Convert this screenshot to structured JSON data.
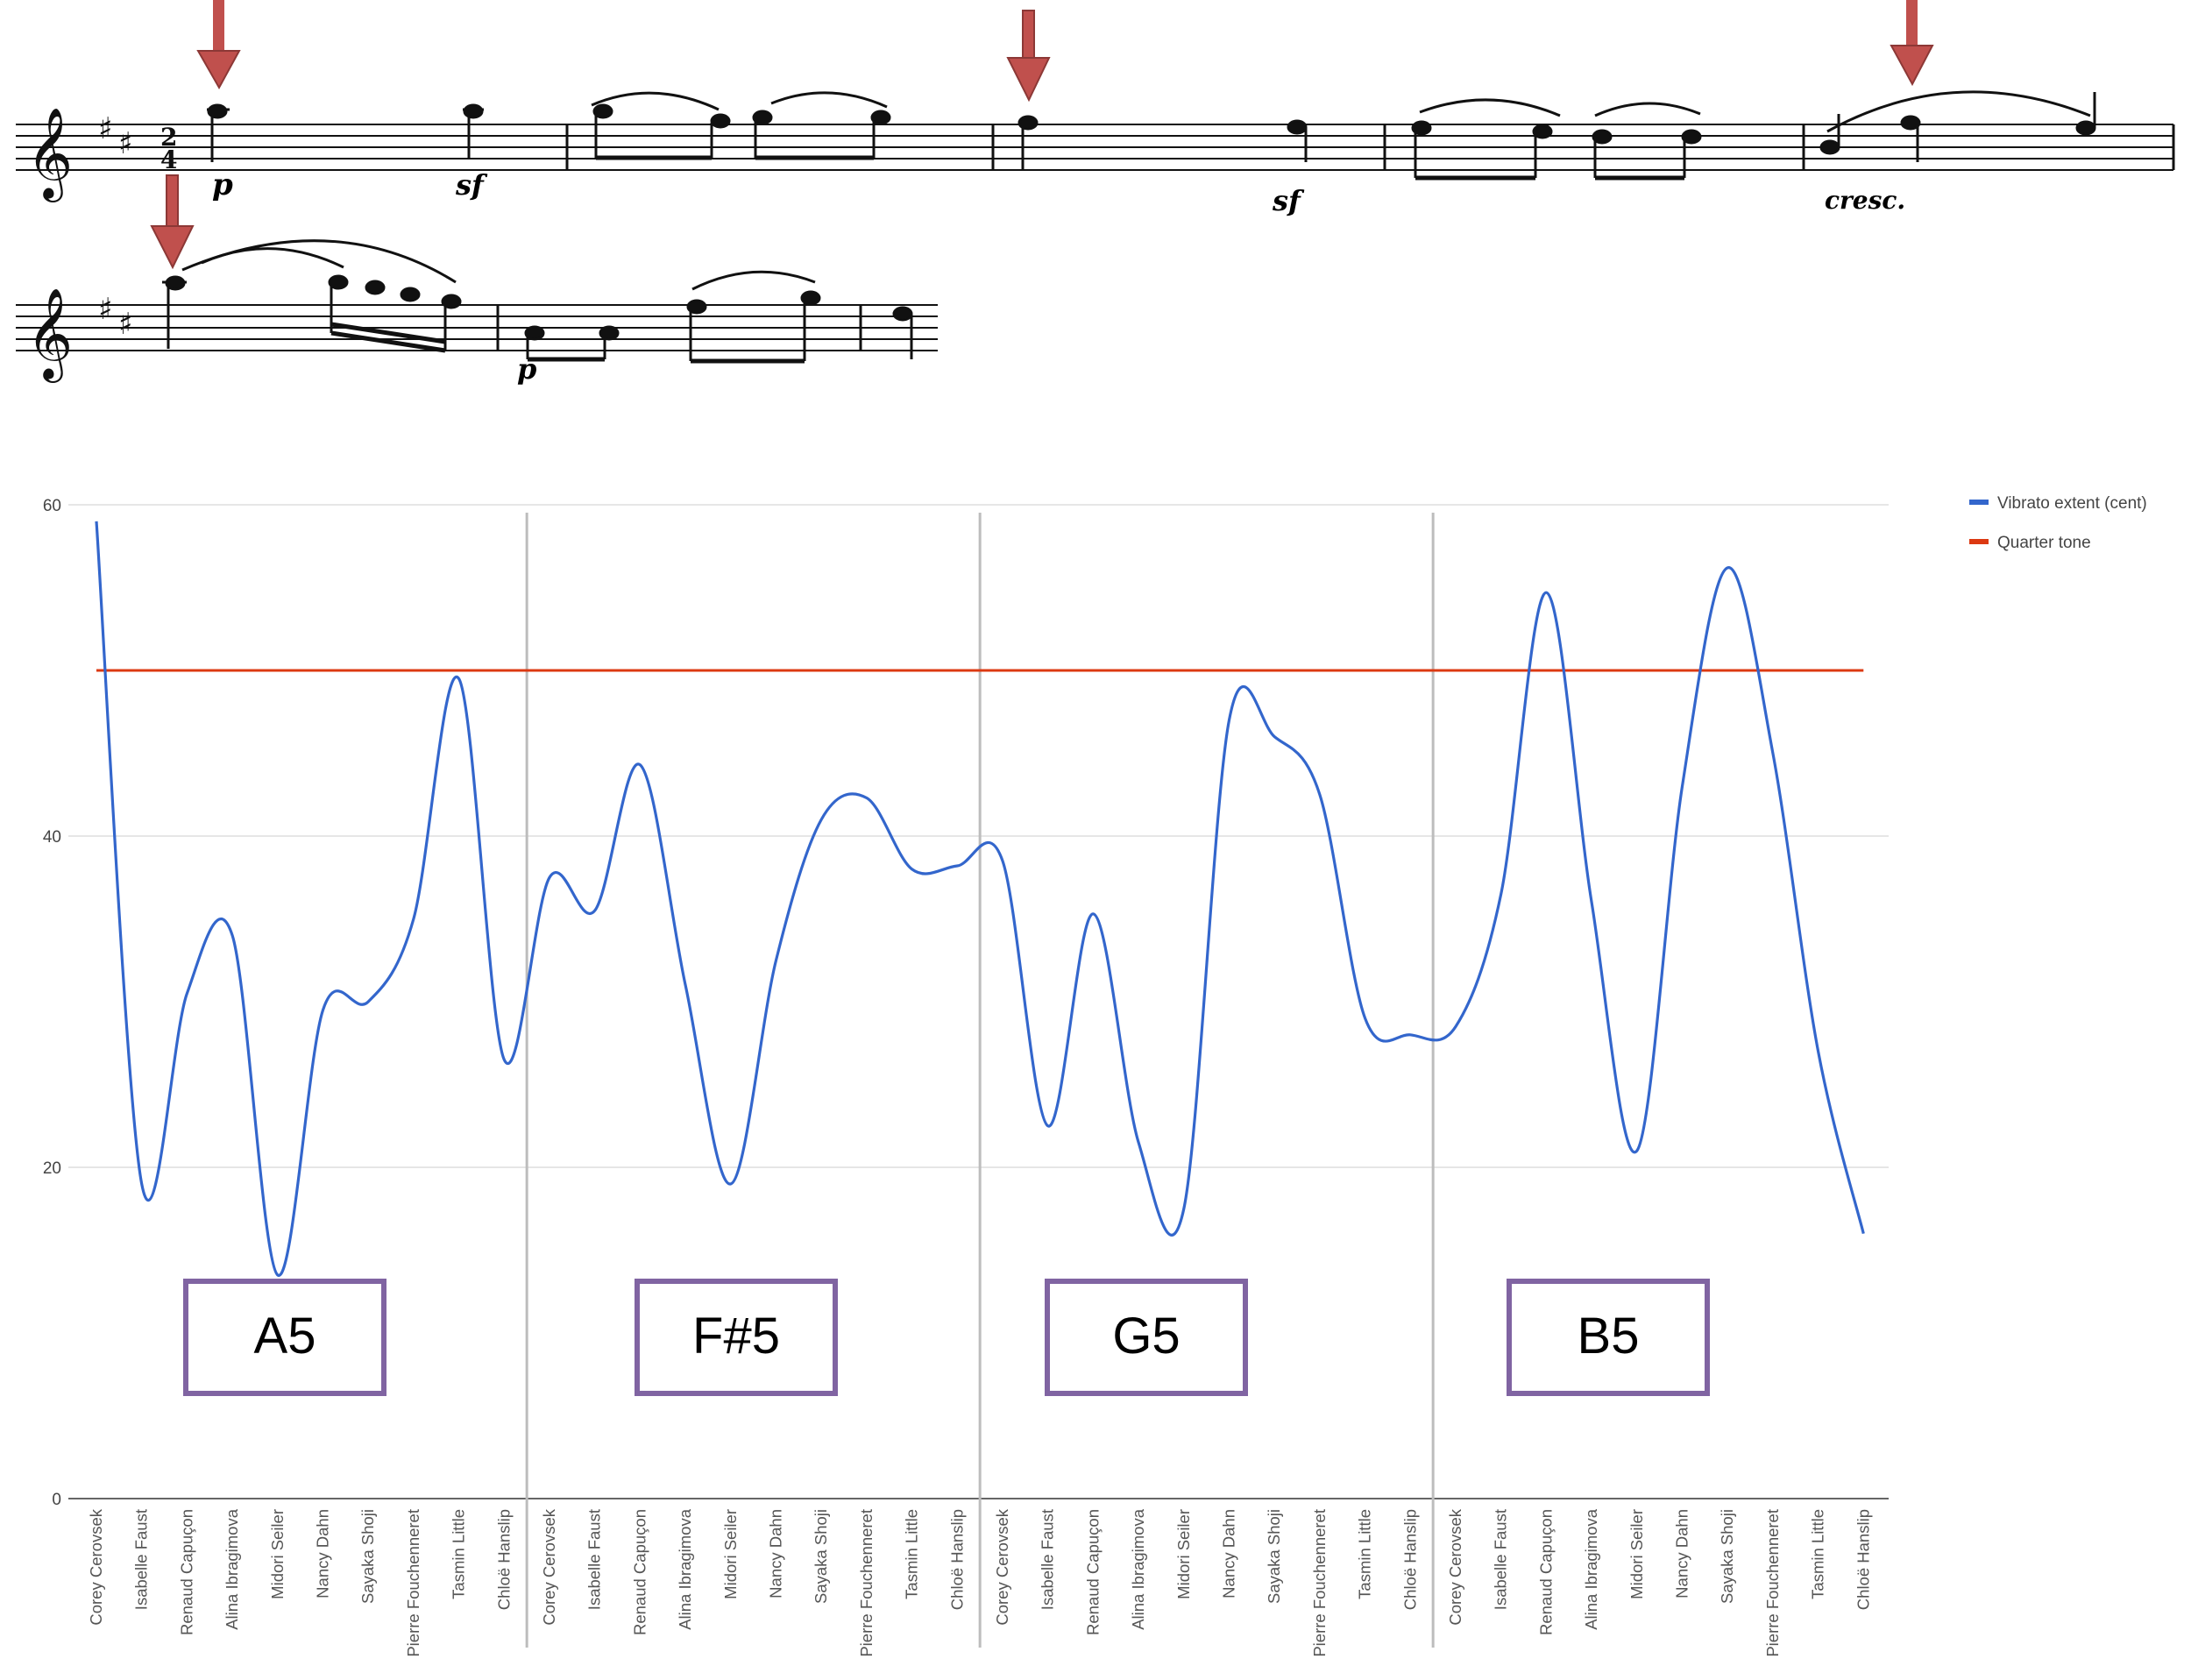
{
  "score": {
    "arrow_color": "#c0504d",
    "dynamics": [
      "p",
      "sf",
      "sf",
      "cresc.",
      "p"
    ],
    "time_signature": [
      "2",
      "4"
    ]
  },
  "chart_data": {
    "type": "line",
    "yticks": [
      "0",
      "20",
      "40",
      "60"
    ],
    "ylim": [
      0,
      60
    ],
    "grid": true,
    "legend_placement": "top-right",
    "series": [
      {
        "name": "Vibrato extent (cent)",
        "color": "#3366cc",
        "values": [
          59,
          19,
          30.5,
          34,
          13.5,
          29.5,
          30,
          35,
          49.5,
          26.5,
          37.5,
          35.5,
          44.3,
          31,
          19,
          32.5,
          41,
          42.3,
          38,
          38.2,
          38.5,
          22.5,
          35.3,
          21.5,
          17.5,
          47,
          46,
          42.5,
          29,
          28,
          28.5,
          36.5,
          54.7,
          36,
          21,
          43,
          56.2,
          45,
          27,
          16
        ]
      },
      {
        "name": "Quarter tone",
        "color": "#dc3912",
        "values": [
          50
        ]
      }
    ],
    "performers": [
      "Corey Cerovsek",
      "Isabelle Faust",
      "Renaud Capuçon",
      "Alina Ibragimova",
      "Midori Seiler",
      "Nancy Dahn",
      "Sayaka Shoji",
      "Pierre Fouchenneret",
      "Tasmin Little",
      "Chloë Hanslip"
    ],
    "groups": [
      {
        "note": "A5"
      },
      {
        "note": "F#5"
      },
      {
        "note": "G5"
      },
      {
        "note": "B5"
      }
    ],
    "group_box_color": "#8064a2",
    "divider_color": "#bdbdbd"
  }
}
